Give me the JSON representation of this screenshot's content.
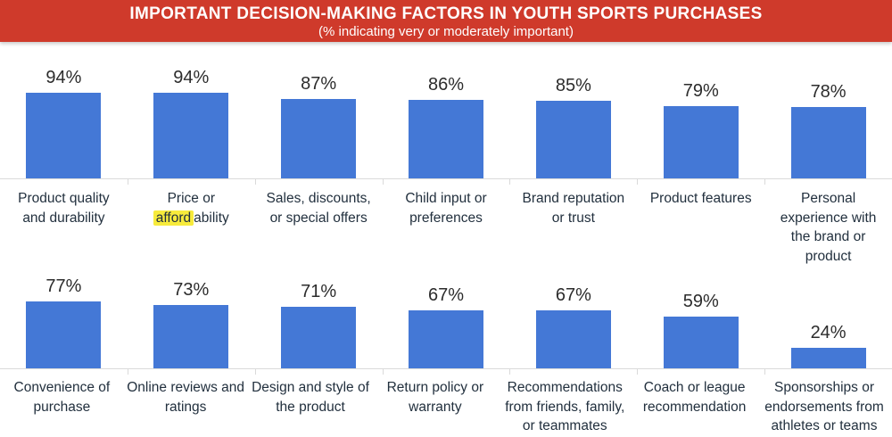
{
  "header": {
    "title": "IMPORTANT DECISION-MAKING FACTORS IN YOUTH SPORTS PURCHASES",
    "subtitle": "(% indicating very or moderately important)",
    "background_color": "#CF3A2B",
    "text_color": "#FFFFFF"
  },
  "chart_data": {
    "type": "bar",
    "title": "IMPORTANT DECISION-MAKING FACTORS IN YOUTH SPORTS PURCHASES",
    "subtitle": "(% indicating very or moderately important)",
    "unit": "%",
    "ylim": [
      0,
      100
    ],
    "grid": false,
    "legend": false,
    "bar_color": "#4478D6",
    "value_label_color": "#2C2C2C",
    "category_label_color": "#22303E",
    "highlight_color": "#F7EB3C",
    "axis_color": "#DADADA",
    "rows": [
      {
        "items": [
          {
            "label": "Product quality and durability",
            "value": 94
          },
          {
            "label": "Price or affordability",
            "value": 94,
            "highlight": "afford"
          },
          {
            "label": "Sales, discounts, or special offers",
            "value": 87
          },
          {
            "label": "Child input or preferences",
            "value": 86
          },
          {
            "label": "Brand reputation or trust",
            "value": 85
          },
          {
            "label": "Product features",
            "value": 79
          },
          {
            "label": "Personal experience with the brand or product",
            "value": 78
          }
        ]
      },
      {
        "items": [
          {
            "label": "Convenience of purchase",
            "value": 77
          },
          {
            "label": "Online reviews and ratings",
            "value": 73
          },
          {
            "label": "Design and style of the product",
            "value": 71
          },
          {
            "label": "Return policy or warranty",
            "value": 67
          },
          {
            "label": "Recommendations from friends, family, or teammates",
            "value": 67
          },
          {
            "label": "Coach or league recommendation",
            "value": 59
          },
          {
            "label": "Sponsorships or endorsements from athletes or teams",
            "value": 24
          }
        ]
      }
    ]
  }
}
